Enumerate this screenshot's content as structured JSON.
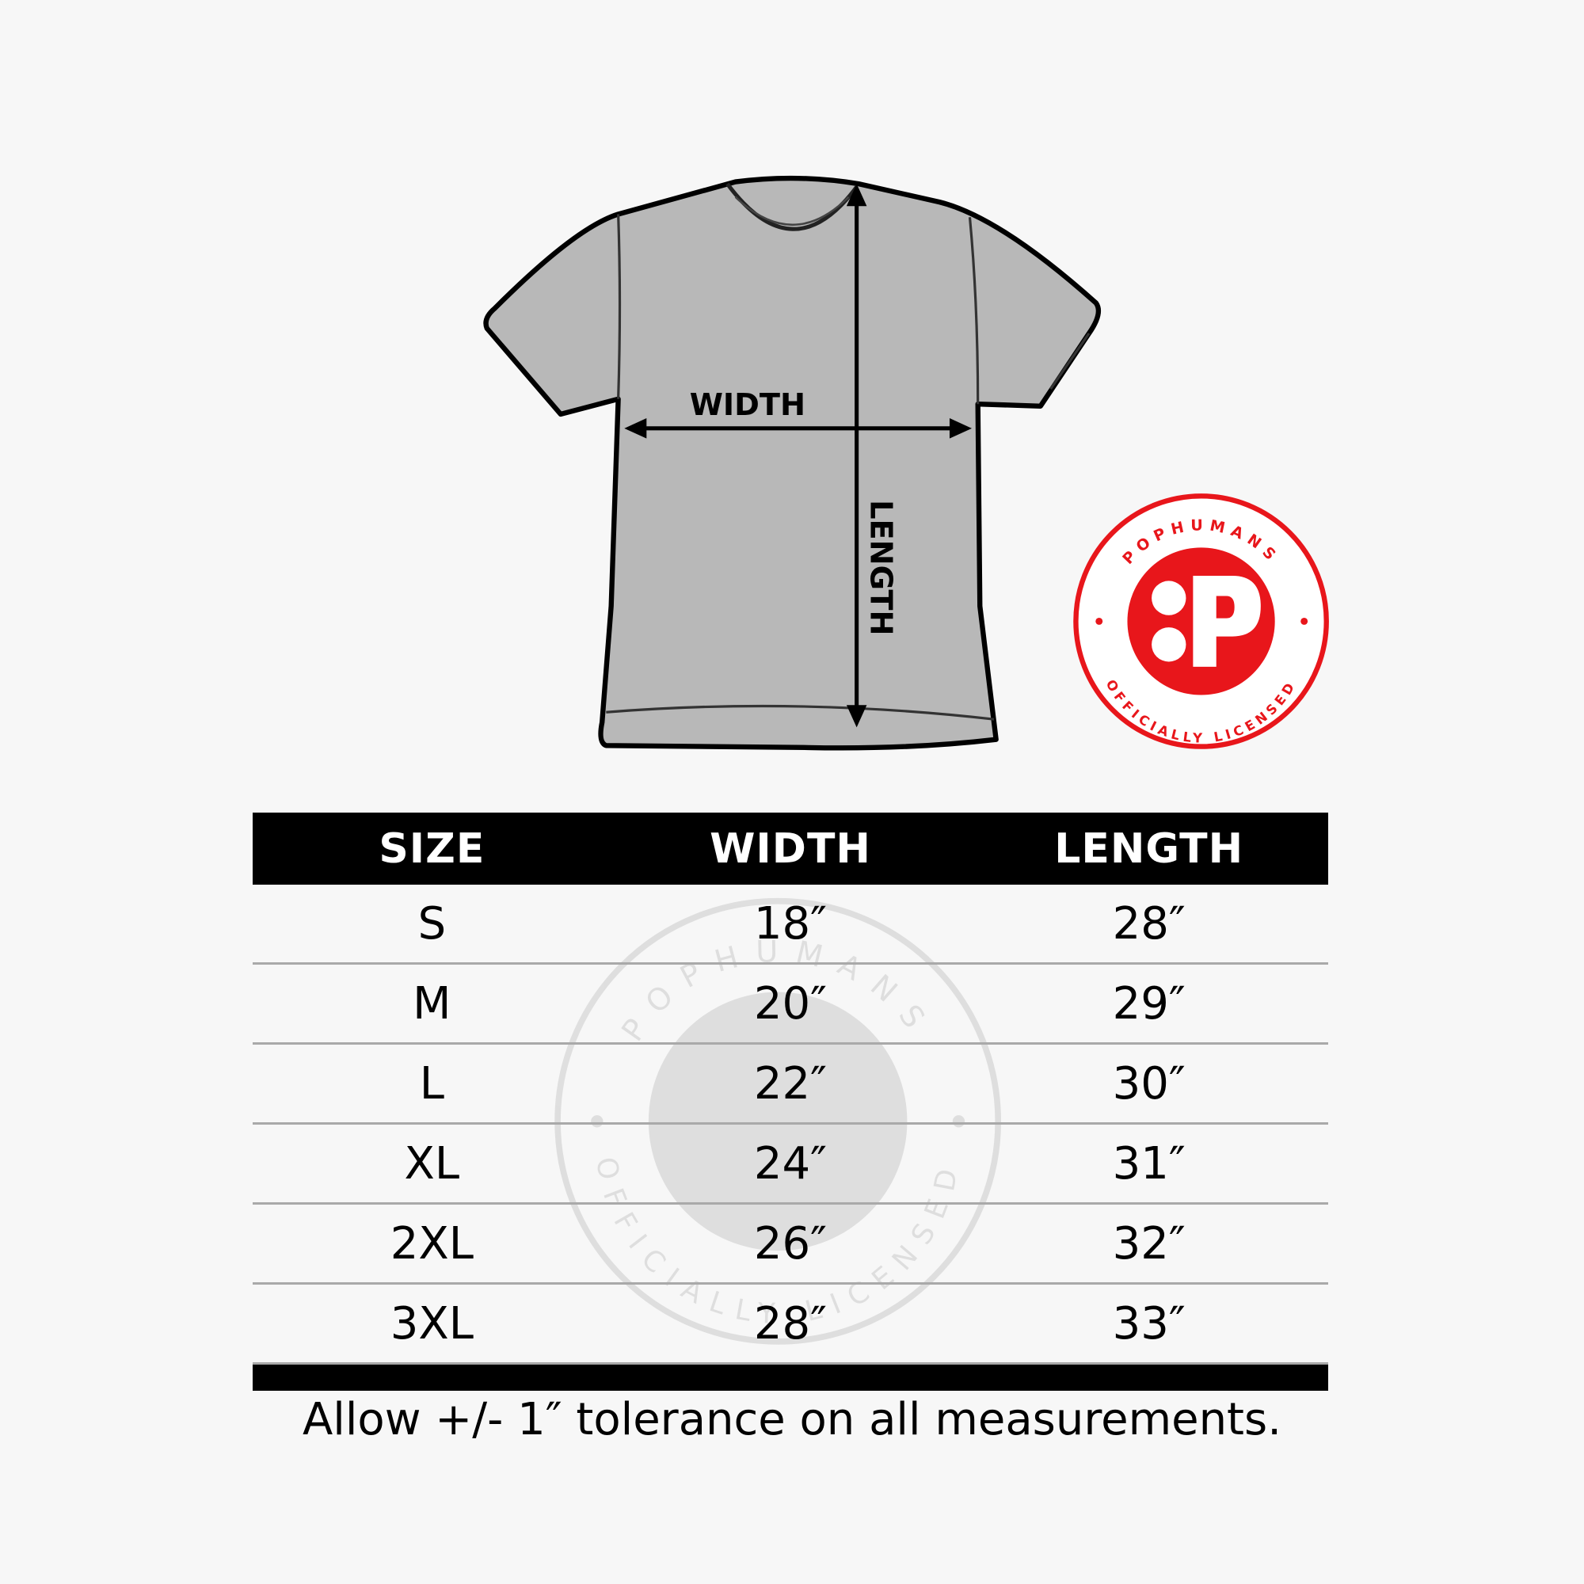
{
  "diagram": {
    "width_label": "WIDTH",
    "length_label": "LENGTH",
    "shirt_color": "#b5b5b5"
  },
  "logo": {
    "top_text": "POPHUMANS",
    "bottom_text": "OFFICIALLY LICENSED",
    "color": "#e8161b"
  },
  "table": {
    "headers": [
      "SIZE",
      "WIDTH",
      "LENGTH"
    ],
    "rows": [
      [
        "S",
        "18″",
        "28″"
      ],
      [
        "M",
        "20″",
        "29″"
      ],
      [
        "L",
        "22″",
        "30″"
      ],
      [
        "XL",
        "24″",
        "31″"
      ],
      [
        "2XL",
        "26″",
        "32″"
      ],
      [
        "3XL",
        "28″",
        "33″"
      ]
    ]
  },
  "footer": {
    "note": "Allow +/- 1″ tolerance on all measurements."
  }
}
